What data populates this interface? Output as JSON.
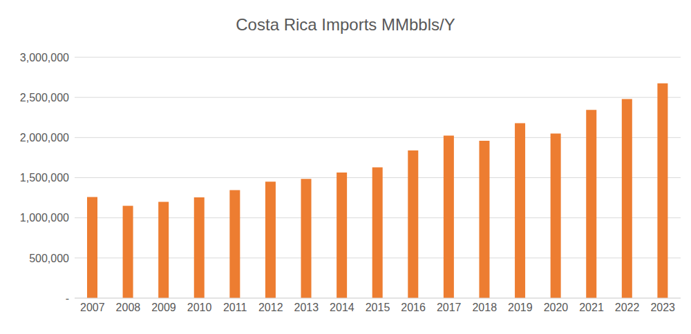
{
  "chart_data": {
    "type": "bar",
    "title": "Costa Rica Imports MMbbls/Y",
    "categories": [
      "2007",
      "2008",
      "2009",
      "2010",
      "2011",
      "2012",
      "2013",
      "2014",
      "2015",
      "2016",
      "2017",
      "2018",
      "2019",
      "2020",
      "2021",
      "2022",
      "2023"
    ],
    "values": [
      1260000,
      1150000,
      1200000,
      1255000,
      1345000,
      1450000,
      1485000,
      1565000,
      1630000,
      1840000,
      2025000,
      1960000,
      2180000,
      2050000,
      2345000,
      2480000,
      2675000
    ],
    "color": "#ed7d31",
    "ylim": [
      0,
      3000000
    ],
    "yticks": [
      {
        "value": 0,
        "label": "-"
      },
      {
        "value": 500000,
        "label": "500,000"
      },
      {
        "value": 1000000,
        "label": "1,000,000"
      },
      {
        "value": 1500000,
        "label": "1,500,000"
      },
      {
        "value": 2000000,
        "label": "2,000,000"
      },
      {
        "value": 2500000,
        "label": "2,500,000"
      },
      {
        "value": 3000000,
        "label": "3,000,000"
      }
    ],
    "grid": true
  }
}
